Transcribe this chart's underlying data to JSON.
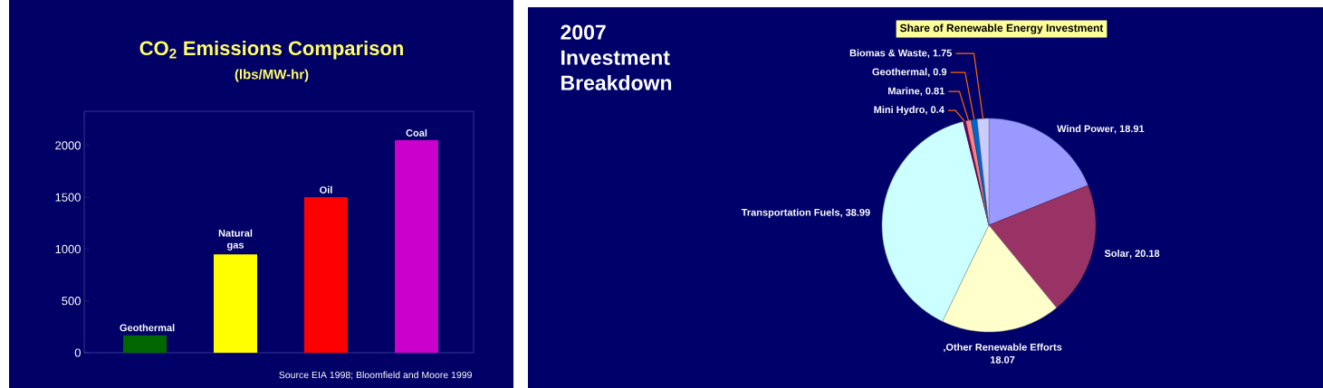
{
  "chart_data": [
    {
      "type": "bar",
      "title": "CO$_{2}$ Emissions Comparison",
      "subtitle": "(lbs/MW-hr)",
      "categories": [
        "Geothermal",
        "Natural gas",
        "Oil",
        "Coal"
      ],
      "values": [
        170,
        950,
        1500,
        2050
      ],
      "colors": [
        "#006600",
        "#ffff00",
        "#ff0000",
        "#cc00cc"
      ],
      "ylim": [
        0,
        2330
      ],
      "yticks": [
        0,
        500,
        1000,
        1500,
        2000
      ],
      "annotations": [
        "Source EIA 1998; Bloomfield and Moore 1999"
      ]
    },
    {
      "type": "pie",
      "title": "Share of Renewable Energy Investment",
      "subtitle": "2007 Investment Breakdown",
      "categories": [
        "Wind Power",
        "Solar",
        ",Other Renewable Efforts",
        "Transportation Fuels",
        "Mini Hydro",
        "Marine",
        "Geothermal",
        "Biomas & Waste"
      ],
      "values": [
        18.91,
        20.18,
        18.07,
        38.99,
        0.4,
        0.81,
        0.9,
        1.75
      ],
      "colors": [
        "#9999ff",
        "#993366",
        "#ffffcc",
        "#ccffff",
        "#660066",
        "#ff8080",
        "#0066cc",
        "#ccccff"
      ],
      "value_labels": [
        ", 18.91",
        ", 20.18",
        "18.07",
        ", 38.99",
        ", 0.4",
        ", 0.81",
        ", 0.9",
        ", 1.75"
      ]
    }
  ]
}
